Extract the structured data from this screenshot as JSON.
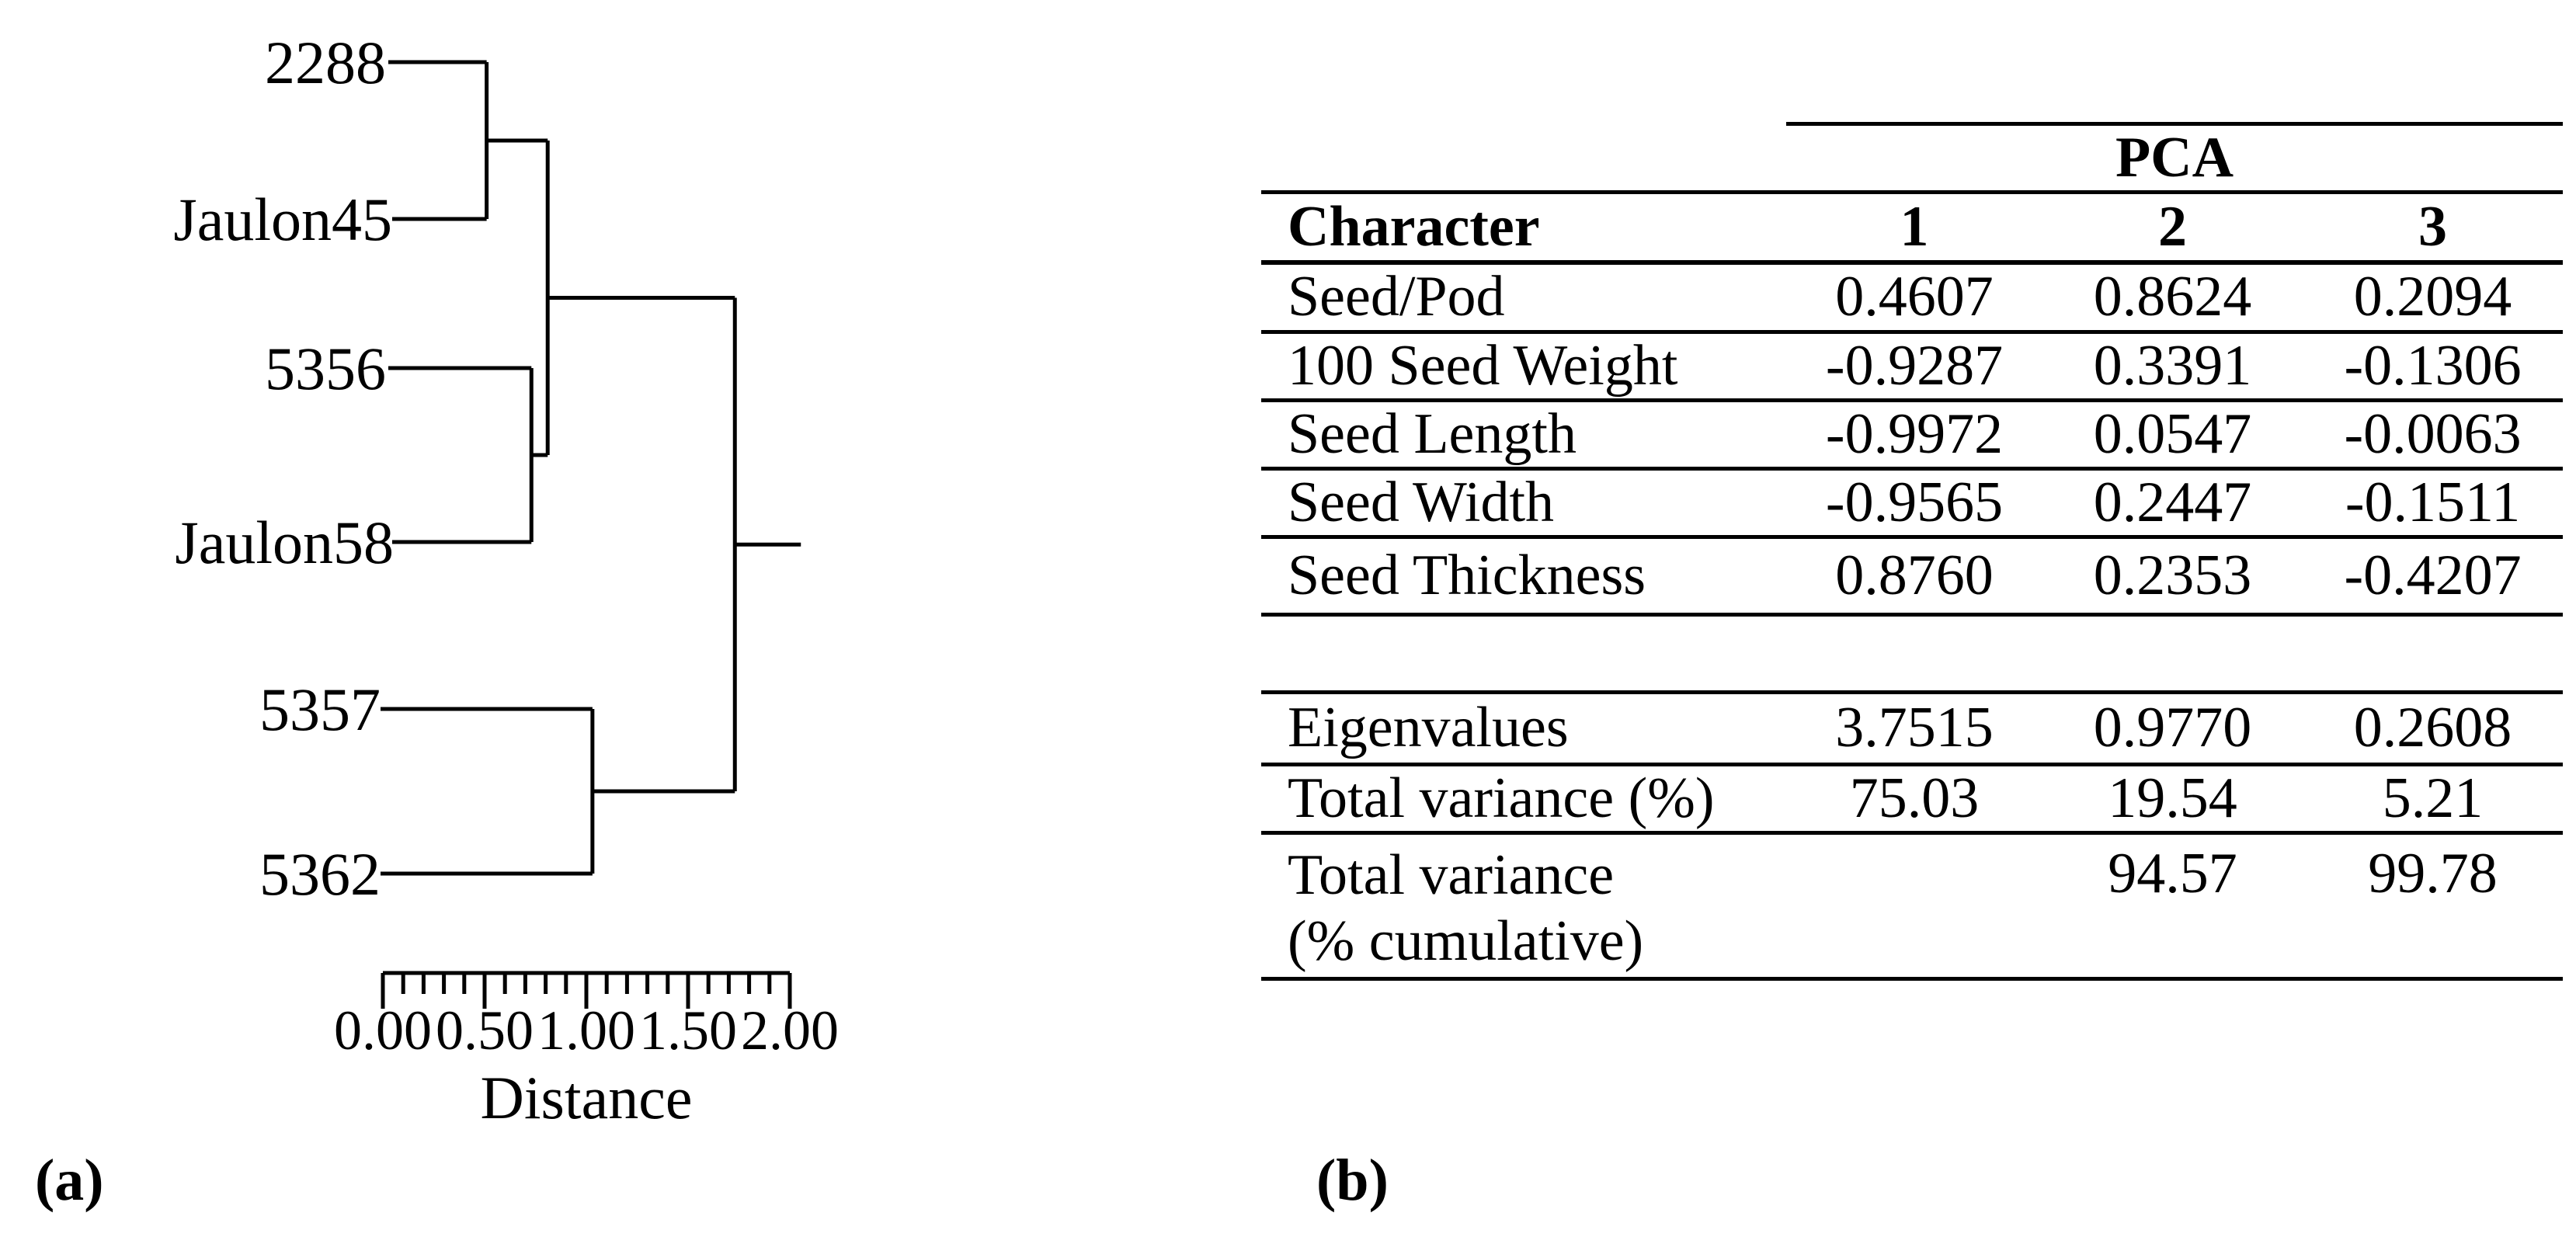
{
  "figure": {
    "panel_a_label": "(a)",
    "panel_b_label": "(b)"
  },
  "chart_data": [
    {
      "type": "dendrogram",
      "orientation": "horizontal",
      "leaves": [
        "2288",
        "Jaulon45",
        "5356",
        "Jaulon58",
        "5357",
        "5362"
      ],
      "merges": [
        {
          "id": "m0",
          "a": "2288",
          "b": "Jaulon45",
          "distance": 0.51
        },
        {
          "id": "m1",
          "a": "5356",
          "b": "Jaulon58",
          "distance": 0.73
        },
        {
          "id": "m2",
          "a": "m0",
          "b": "m1",
          "distance": 0.81
        },
        {
          "id": "m3",
          "a": "5357",
          "b": "5362",
          "distance": 1.03
        },
        {
          "id": "m4",
          "a": "m2",
          "b": "m3",
          "distance": 1.73
        }
      ],
      "xlabel": "Distance",
      "axis": {
        "min": 0,
        "max": 2,
        "major_step": 0.5,
        "minor_step": 0.1,
        "tick_labels": [
          "0.00",
          "0.50",
          "1.00",
          "1.50",
          "2.00"
        ]
      },
      "line_color": "#000000",
      "grid": false
    },
    {
      "type": "table",
      "group_header": "PCA",
      "columns": [
        "Character",
        "1",
        "2",
        "3"
      ],
      "rows": [
        [
          "Seed/Pod",
          "0.4607",
          "0.8624",
          "0.2094"
        ],
        [
          "100 Seed Weight",
          "-0.9287",
          "0.3391",
          "-0.1306"
        ],
        [
          "Seed Length",
          "-0.9972",
          "0.0547",
          "-0.0063"
        ],
        [
          "Seed Width",
          "-0.9565",
          "0.2447",
          "-0.1511"
        ],
        [
          "Seed Thickness",
          "0.8760",
          "0.2353",
          "-0.4207"
        ]
      ],
      "summary_rows": [
        [
          "Eigenvalues",
          "3.7515",
          "0.9770",
          "0.2608"
        ],
        [
          "Total variance (%)",
          "75.03",
          "19.54",
          "5.21"
        ]
      ],
      "cumulative_row": {
        "label_line1": "Total variance",
        "label_line2": "(% cumulative)",
        "pc1": "",
        "pc2": "94.57",
        "pc3": "99.78"
      }
    }
  ]
}
